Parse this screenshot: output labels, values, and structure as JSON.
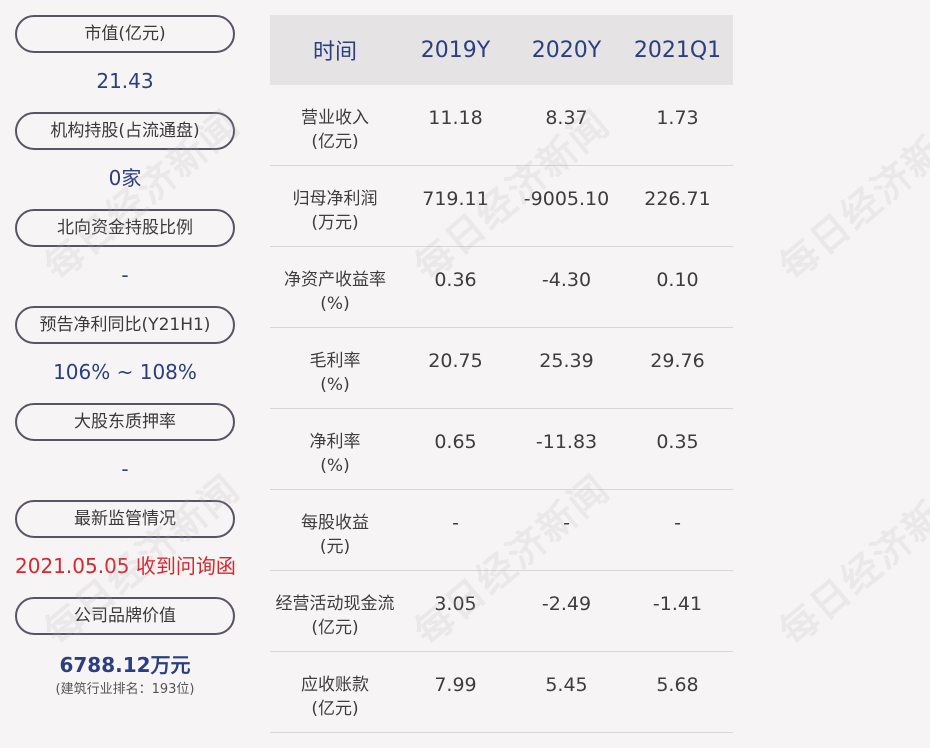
{
  "watermark": "每日经济新闻",
  "metrics": [
    {
      "label": "市值(亿元)",
      "value": "21.43"
    },
    {
      "label": "机构持股(占流通盘)",
      "value": "0家"
    },
    {
      "label": "北向资金持股比例",
      "value": "-"
    },
    {
      "label": "预告净利同比(Y21H1)",
      "value": "106% ~ 108%"
    },
    {
      "label": "大股东质押率",
      "value": "-"
    },
    {
      "label": "最新监管情况",
      "value": "2021.05.05 收到问询函"
    },
    {
      "label": "公司品牌价值",
      "value": "6788.12万元",
      "sub": "(建筑行业排名：193位)"
    }
  ],
  "table": {
    "headers": [
      "时间",
      "2019Y",
      "2020Y",
      "2021Q1"
    ],
    "rows": [
      {
        "name": "营业收入",
        "unit": "(亿元)",
        "values": [
          "11.18",
          "8.37",
          "1.73"
        ]
      },
      {
        "name": "归母净利润",
        "unit": "(万元)",
        "values": [
          "719.11",
          "-9005.10",
          "226.71"
        ]
      },
      {
        "name": "净资产收益率",
        "unit": "(%)",
        "values": [
          "0.36",
          "-4.30",
          "0.10"
        ]
      },
      {
        "name": "毛利率",
        "unit": "(%)",
        "values": [
          "20.75",
          "25.39",
          "29.76"
        ]
      },
      {
        "name": "净利率",
        "unit": "(%)",
        "values": [
          "0.65",
          "-11.83",
          "0.35"
        ]
      },
      {
        "name": "每股收益",
        "unit": "(元)",
        "values": [
          "-",
          "-",
          "-"
        ]
      },
      {
        "name": "经营活动现金流",
        "unit": "(亿元)",
        "values": [
          "3.05",
          "-2.49",
          "-1.41"
        ]
      },
      {
        "name": "应收账款",
        "unit": "(亿元)",
        "values": [
          "7.99",
          "5.45",
          "5.68"
        ]
      }
    ]
  }
}
